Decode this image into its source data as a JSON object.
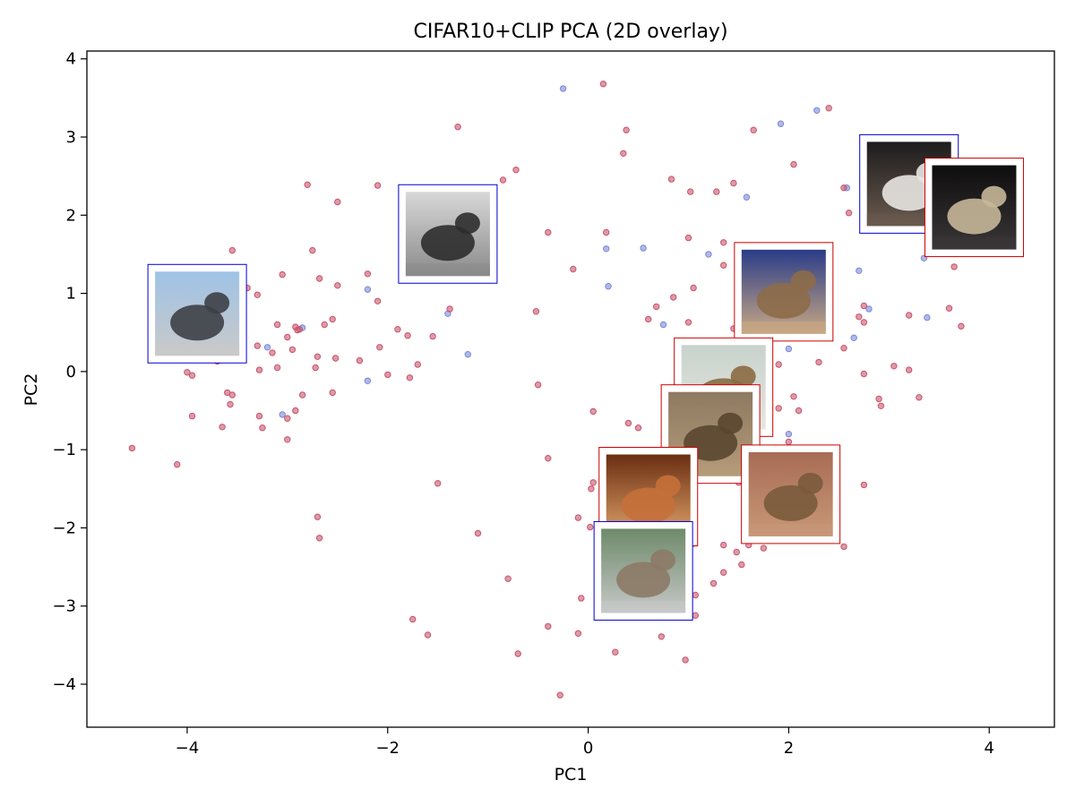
{
  "chart_data": {
    "type": "scatter",
    "title": "CIFAR10+CLIP PCA (2D overlay)",
    "xlabel": "PC1",
    "ylabel": "PC2",
    "xlim": [
      -5.0,
      4.65
    ],
    "ylim": [
      -4.55,
      4.1
    ],
    "xticks": [
      -4,
      -2,
      0,
      2,
      4
    ],
    "yticks": [
      -4,
      -3,
      -2,
      -1,
      0,
      1,
      2,
      3,
      4
    ],
    "xtick_labels": [
      "−4",
      "−2",
      "0",
      "2",
      "4"
    ],
    "ytick_labels": [
      "−4",
      "−3",
      "−2",
      "−1",
      "0",
      "1",
      "2",
      "3",
      "4"
    ],
    "grid": false,
    "colors": {
      "series_a": "#c8556d",
      "series_b": "#7b88d8",
      "frame_a": "#0000cc",
      "frame_b": "#cc0000"
    },
    "series": [
      {
        "points": [
          [
            -0.25,
            3.62
          ],
          [
            2.28,
            3.34
          ],
          [
            1.92,
            3.17
          ],
          [
            1.58,
            2.23
          ],
          [
            2.58,
            2.35
          ],
          [
            0.18,
            1.57
          ],
          [
            0.55,
            1.58
          ],
          [
            1.2,
            1.5
          ],
          [
            0.2,
            1.09
          ],
          [
            -2.2,
            1.05
          ],
          [
            -1.4,
            0.74
          ],
          [
            -1.2,
            0.22
          ],
          [
            -2.2,
            -0.12
          ],
          [
            -3.2,
            0.31
          ],
          [
            -2.85,
            0.56
          ],
          [
            -3.05,
            -0.55
          ],
          [
            2.7,
            1.29
          ],
          [
            2.8,
            0.8
          ],
          [
            3.35,
            1.45
          ],
          [
            3.38,
            0.69
          ],
          [
            0.75,
            0.6
          ],
          [
            2.0,
            0.29
          ],
          [
            2.65,
            0.43
          ],
          [
            2.0,
            -0.8
          ],
          [
            1.7,
            1.4
          ],
          [
            1.25,
            -0.2
          ],
          [
            0.8,
            -2.4
          ]
        ]
      },
      {
        "points": [
          [
            0.15,
            3.68
          ],
          [
            -1.3,
            3.13
          ],
          [
            0.38,
            3.09
          ],
          [
            1.65,
            3.09
          ],
          [
            2.4,
            3.37
          ],
          [
            0.35,
            2.79
          ],
          [
            -0.85,
            2.45
          ],
          [
            -0.72,
            2.58
          ],
          [
            0.83,
            2.46
          ],
          [
            1.28,
            2.3
          ],
          [
            1.45,
            2.41
          ],
          [
            2.05,
            2.65
          ],
          [
            1.02,
            2.3
          ],
          [
            -2.8,
            2.39
          ],
          [
            -2.1,
            2.38
          ],
          [
            -2.5,
            2.17
          ],
          [
            -1.6,
            1.95
          ],
          [
            -0.4,
            1.78
          ],
          [
            0.18,
            1.78
          ],
          [
            1.0,
            1.71
          ],
          [
            1.35,
            1.65
          ],
          [
            2.55,
            2.35
          ],
          [
            2.6,
            2.03
          ],
          [
            -3.55,
            1.55
          ],
          [
            -2.75,
            1.55
          ],
          [
            -3.05,
            1.24
          ],
          [
            -2.2,
            1.25
          ],
          [
            -2.68,
            1.19
          ],
          [
            -0.15,
            1.31
          ],
          [
            1.35,
            1.36
          ],
          [
            1.7,
            1.24
          ],
          [
            3.65,
            1.34
          ],
          [
            -3.4,
            1.07
          ],
          [
            -3.3,
            0.98
          ],
          [
            -2.5,
            1.1
          ],
          [
            -2.1,
            0.9
          ],
          [
            -1.38,
            0.8
          ],
          [
            -0.52,
            0.77
          ],
          [
            0.85,
            0.95
          ],
          [
            1.05,
            1.07
          ],
          [
            0.68,
            0.83
          ],
          [
            0.6,
            0.67
          ],
          [
            2.75,
            0.84
          ],
          [
            3.2,
            0.72
          ],
          [
            3.6,
            0.81
          ],
          [
            3.72,
            0.58
          ],
          [
            2.7,
            0.7
          ],
          [
            2.75,
            0.63
          ],
          [
            -3.1,
            0.6
          ],
          [
            -2.9,
            0.53
          ],
          [
            -2.63,
            0.6
          ],
          [
            -2.55,
            0.67
          ],
          [
            -1.9,
            0.54
          ],
          [
            -1.8,
            0.46
          ],
          [
            -1.55,
            0.45
          ],
          [
            -3.0,
            0.44
          ],
          [
            -3.3,
            0.33
          ],
          [
            -3.15,
            0.24
          ],
          [
            -2.95,
            0.28
          ],
          [
            -2.08,
            0.31
          ],
          [
            -2.7,
            0.19
          ],
          [
            -2.52,
            0.17
          ],
          [
            -2.28,
            0.14
          ],
          [
            -1.7,
            0.09
          ],
          [
            -3.7,
            0.13
          ],
          [
            1.0,
            0.63
          ],
          [
            1.45,
            0.55
          ],
          [
            2.55,
            0.3
          ],
          [
            2.3,
            0.12
          ],
          [
            1.9,
            0.09
          ],
          [
            3.05,
            0.07
          ],
          [
            3.2,
            0.02
          ],
          [
            2.75,
            -0.03
          ],
          [
            -4.0,
            -0.01
          ],
          [
            -3.95,
            -0.05
          ],
          [
            -3.28,
            0.02
          ],
          [
            -3.1,
            0.05
          ],
          [
            -2.72,
            0.05
          ],
          [
            -2.0,
            -0.04
          ],
          [
            -1.78,
            -0.08
          ],
          [
            -0.5,
            -0.17
          ],
          [
            2.05,
            -0.32
          ],
          [
            2.1,
            -0.5
          ],
          [
            1.9,
            -0.47
          ],
          [
            2.9,
            -0.35
          ],
          [
            2.92,
            -0.44
          ],
          [
            3.3,
            -0.33
          ],
          [
            -3.6,
            -0.27
          ],
          [
            -3.55,
            -0.3
          ],
          [
            -2.85,
            -0.3
          ],
          [
            -2.55,
            -0.27
          ],
          [
            -3.57,
            -0.42
          ],
          [
            -3.95,
            -0.57
          ],
          [
            -3.28,
            -0.57
          ],
          [
            -2.92,
            -0.5
          ],
          [
            -3.0,
            -0.6
          ],
          [
            -3.65,
            -0.71
          ],
          [
            -3.25,
            -0.72
          ],
          [
            0.05,
            -0.51
          ],
          [
            0.4,
            -0.66
          ],
          [
            0.5,
            -0.72
          ],
          [
            1.75,
            -0.72
          ],
          [
            2.0,
            -0.9
          ],
          [
            -3.0,
            -0.87
          ],
          [
            -4.55,
            -0.98
          ],
          [
            -4.1,
            -1.19
          ],
          [
            -0.4,
            -1.11
          ],
          [
            0.3,
            -1.21
          ],
          [
            0.05,
            -1.42
          ],
          [
            0.03,
            -1.5
          ],
          [
            -1.5,
            -1.43
          ],
          [
            1.5,
            -1.42
          ],
          [
            2.75,
            -1.45
          ],
          [
            -2.7,
            -1.86
          ],
          [
            -2.68,
            -2.13
          ],
          [
            -1.1,
            -2.07
          ],
          [
            -0.1,
            -1.87
          ],
          [
            0.02,
            -1.99
          ],
          [
            0.68,
            -2.0
          ],
          [
            1.05,
            -2.2
          ],
          [
            1.35,
            -2.22
          ],
          [
            1.6,
            -2.22
          ],
          [
            1.75,
            -2.26
          ],
          [
            1.48,
            -2.31
          ],
          [
            1.53,
            -2.47
          ],
          [
            2.55,
            -2.24
          ],
          [
            -0.8,
            -2.65
          ],
          [
            -0.07,
            -2.9
          ],
          [
            1.35,
            -2.57
          ],
          [
            1.25,
            -2.71
          ],
          [
            1.07,
            -2.86
          ],
          [
            -1.75,
            -3.17
          ],
          [
            -1.6,
            -3.37
          ],
          [
            -0.4,
            -3.26
          ],
          [
            -0.1,
            -3.35
          ],
          [
            0.73,
            -3.39
          ],
          [
            1.07,
            -3.12
          ],
          [
            -0.7,
            -3.61
          ],
          [
            0.27,
            -3.59
          ],
          [
            0.97,
            -3.69
          ],
          [
            -0.28,
            -4.14
          ],
          [
            -2.92,
            0.57
          ],
          [
            -2.88,
            0.54
          ]
        ]
      }
    ],
    "thumbnails": [
      {
        "subject": "truck",
        "frame": "frame_a",
        "x": -3.9,
        "y": 0.74,
        "sky": "#9fc3e6",
        "fg": "#3d3f46",
        "accent": "#c9c9c9"
      },
      {
        "subject": "airplane",
        "frame": "frame_a",
        "x": -1.4,
        "y": 1.76,
        "sky": "#d8d8d8",
        "fg": "#2e2e2e",
        "accent": "#8a8a8a"
      },
      {
        "subject": "dog",
        "frame": "frame_a",
        "x": 3.2,
        "y": 2.4,
        "sky": "#1d1c1d",
        "fg": "#e8e6e2",
        "accent": "#6a5a4e"
      },
      {
        "subject": "cat",
        "frame": "frame_b",
        "x": 3.85,
        "y": 2.1,
        "sky": "#0e0d0d",
        "fg": "#c7b799",
        "accent": "#3a3638"
      },
      {
        "subject": "cat",
        "frame": "frame_b",
        "x": 1.95,
        "y": 1.02,
        "sky": "#2a3c88",
        "fg": "#8d6c48",
        "accent": "#c9a884"
      },
      {
        "subject": "frog",
        "frame": "frame_b",
        "x": 1.35,
        "y": -0.2,
        "sky": "#c8d2cc",
        "fg": "#8a6a42",
        "accent": "#e6e6e0"
      },
      {
        "subject": "deer",
        "frame": "frame_b",
        "x": 1.22,
        "y": -0.8,
        "sky": "#8e7a62",
        "fg": "#5a4630",
        "accent": "#b49a78"
      },
      {
        "subject": "deer",
        "frame": "frame_b",
        "x": 0.6,
        "y": -1.6,
        "sky": "#6a2e12",
        "fg": "#c5703a",
        "accent": "#e2a46a"
      },
      {
        "subject": "frog",
        "frame": "frame_b",
        "x": 2.02,
        "y": -1.57,
        "sky": "#a86c55",
        "fg": "#7a5a3c",
        "accent": "#c89878"
      },
      {
        "subject": "horse",
        "frame": "frame_a",
        "x": 0.55,
        "y": -2.55,
        "sky": "#6e8a6a",
        "fg": "#8c7a66",
        "accent": "#c6c8c8"
      }
    ]
  }
}
